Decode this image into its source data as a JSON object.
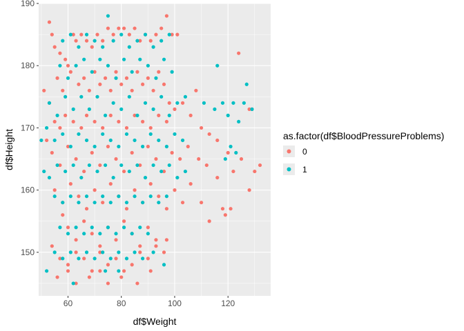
{
  "chart_data": {
    "type": "scatter",
    "title": "",
    "xlabel": "df$Weight",
    "ylabel": "df$Height",
    "xlim": [
      49,
      136
    ],
    "ylim": [
      143,
      190
    ],
    "x_ticks": [
      60,
      80,
      100,
      120
    ],
    "x_tick_labels": [
      "60",
      "80",
      "100",
      "120"
    ],
    "y_ticks": [
      150,
      160,
      170,
      180,
      190
    ],
    "y_tick_labels": [
      "150",
      "160",
      "170",
      "180",
      "190"
    ],
    "grid": true,
    "legend": {
      "placement": "right",
      "title": "as.factor(df$BloodPressureProblems)"
    },
    "series": [
      {
        "name": "0",
        "color": "#F8766D",
        "points": [
          [
            53,
            187
          ],
          [
            54,
            185
          ],
          [
            55,
            183
          ],
          [
            57,
            182
          ],
          [
            59,
            181
          ],
          [
            60,
            180
          ],
          [
            62,
            185
          ],
          [
            63,
            184
          ],
          [
            65,
            185
          ],
          [
            67,
            184
          ],
          [
            69,
            183
          ],
          [
            71,
            185
          ],
          [
            73,
            184
          ],
          [
            75,
            186
          ],
          [
            77,
            185
          ],
          [
            79,
            186
          ],
          [
            81,
            186
          ],
          [
            83,
            185
          ],
          [
            85,
            186
          ],
          [
            87,
            184
          ],
          [
            89,
            185
          ],
          [
            91,
            184
          ],
          [
            93,
            185
          ],
          [
            95,
            186
          ],
          [
            97,
            188
          ],
          [
            99,
            185
          ],
          [
            101,
            185
          ],
          [
            56,
            178
          ],
          [
            58,
            176
          ],
          [
            61,
            179
          ],
          [
            64,
            177
          ],
          [
            66,
            178
          ],
          [
            68,
            176
          ],
          [
            70,
            179
          ],
          [
            72,
            177
          ],
          [
            74,
            178
          ],
          [
            76,
            176
          ],
          [
            78,
            179
          ],
          [
            80,
            177
          ],
          [
            82,
            178
          ],
          [
            84,
            176
          ],
          [
            86,
            179
          ],
          [
            88,
            177
          ],
          [
            90,
            178
          ],
          [
            92,
            176
          ],
          [
            94,
            179
          ],
          [
            96,
            177
          ],
          [
            98,
            174
          ],
          [
            51,
            176
          ],
          [
            53,
            174
          ],
          [
            55,
            171
          ],
          [
            57,
            170
          ],
          [
            59,
            172
          ],
          [
            62,
            171
          ],
          [
            65,
            170
          ],
          [
            67,
            172
          ],
          [
            70,
            171
          ],
          [
            73,
            170
          ],
          [
            76,
            172
          ],
          [
            79,
            171
          ],
          [
            82,
            170
          ],
          [
            85,
            172
          ],
          [
            88,
            171
          ],
          [
            91,
            170
          ],
          [
            94,
            172
          ],
          [
            97,
            171
          ],
          [
            100,
            173
          ],
          [
            103,
            174
          ],
          [
            106,
            172
          ],
          [
            108,
            176
          ],
          [
            110,
            170
          ],
          [
            113,
            169
          ],
          [
            116,
            168
          ],
          [
            52,
            168
          ],
          [
            54,
            166
          ],
          [
            57,
            164
          ],
          [
            60,
            167
          ],
          [
            63,
            165
          ],
          [
            66,
            163
          ],
          [
            69,
            166
          ],
          [
            72,
            164
          ],
          [
            75,
            167
          ],
          [
            78,
            165
          ],
          [
            81,
            163
          ],
          [
            84,
            166
          ],
          [
            87,
            164
          ],
          [
            90,
            167
          ],
          [
            93,
            165
          ],
          [
            96,
            163
          ],
          [
            99,
            166
          ],
          [
            102,
            165
          ],
          [
            105,
            167
          ],
          [
            109,
            165
          ],
          [
            112,
            164
          ],
          [
            120,
            166
          ],
          [
            122,
            163
          ],
          [
            125,
            165
          ],
          [
            128,
            173
          ],
          [
            129,
            173
          ],
          [
            132,
            164
          ],
          [
            130,
            163
          ],
          [
            128,
            160
          ],
          [
            55,
            160
          ],
          [
            58,
            158
          ],
          [
            61,
            161
          ],
          [
            64,
            159
          ],
          [
            67,
            157
          ],
          [
            70,
            160
          ],
          [
            73,
            158
          ],
          [
            76,
            161
          ],
          [
            79,
            159
          ],
          [
            82,
            157
          ],
          [
            85,
            160
          ],
          [
            88,
            158
          ],
          [
            91,
            161
          ],
          [
            94,
            159
          ],
          [
            97,
            157
          ],
          [
            100,
            160
          ],
          [
            103,
            158
          ],
          [
            106,
            161
          ],
          [
            110,
            158
          ],
          [
            113,
            155
          ],
          [
            116,
            162
          ],
          [
            118,
            157
          ],
          [
            119,
            156
          ],
          [
            121,
            157
          ],
          [
            124,
            182
          ],
          [
            58,
            156
          ],
          [
            60,
            154
          ],
          [
            63,
            152
          ],
          [
            66,
            155
          ],
          [
            69,
            153
          ],
          [
            72,
            151
          ],
          [
            75,
            154
          ],
          [
            78,
            152
          ],
          [
            81,
            155
          ],
          [
            84,
            153
          ],
          [
            87,
            151
          ],
          [
            90,
            154
          ],
          [
            93,
            152
          ],
          [
            96,
            150
          ],
          [
            54,
            151
          ],
          [
            57,
            149
          ],
          [
            60,
            148
          ],
          [
            63,
            150
          ],
          [
            66,
            149
          ],
          [
            69,
            147
          ],
          [
            72,
            150
          ],
          [
            75,
            148
          ],
          [
            78,
            149
          ],
          [
            81,
            147
          ],
          [
            84,
            148
          ],
          [
            87,
            150
          ],
          [
            90,
            149
          ],
          [
            93,
            151
          ],
          [
            97,
            152
          ],
          [
            56,
            146
          ],
          [
            60,
            147
          ],
          [
            63,
            145
          ],
          [
            68,
            146
          ],
          [
            72,
            147
          ],
          [
            75,
            145
          ],
          [
            80,
            146
          ],
          [
            86,
            145
          ],
          [
            91,
            147
          ]
        ]
      },
      {
        "name": "1",
        "color": "#00BFC4",
        "points": [
          [
            58,
            184
          ],
          [
            61,
            185
          ],
          [
            64,
            183
          ],
          [
            67,
            185
          ],
          [
            70,
            184
          ],
          [
            73,
            183
          ],
          [
            75,
            188
          ],
          [
            77,
            184
          ],
          [
            80,
            185
          ],
          [
            83,
            183
          ],
          [
            86,
            184
          ],
          [
            89,
            185
          ],
          [
            92,
            183
          ],
          [
            95,
            184
          ],
          [
            98,
            185
          ],
          [
            57,
            180
          ],
          [
            60,
            178
          ],
          [
            63,
            180
          ],
          [
            66,
            181
          ],
          [
            69,
            179
          ],
          [
            72,
            181
          ],
          [
            75,
            180
          ],
          [
            78,
            178
          ],
          [
            81,
            181
          ],
          [
            84,
            179
          ],
          [
            87,
            181
          ],
          [
            90,
            180
          ],
          [
            93,
            178
          ],
          [
            96,
            181
          ],
          [
            99,
            179
          ],
          [
            116,
            180
          ],
          [
            127,
            177
          ],
          [
            126,
            174
          ],
          [
            124,
            171
          ],
          [
            122,
            174
          ],
          [
            120,
            172
          ],
          [
            118,
            174
          ],
          [
            115,
            173
          ],
          [
            111,
            174
          ],
          [
            129,
            173
          ],
          [
            53,
            174
          ],
          [
            56,
            172
          ],
          [
            59,
            175
          ],
          [
            62,
            173
          ],
          [
            65,
            175
          ],
          [
            68,
            173
          ],
          [
            71,
            175
          ],
          [
            74,
            172
          ],
          [
            77,
            174
          ],
          [
            80,
            173
          ],
          [
            83,
            175
          ],
          [
            86,
            172
          ],
          [
            89,
            174
          ],
          [
            92,
            173
          ],
          [
            95,
            175
          ],
          [
            98,
            172
          ],
          [
            101,
            174
          ],
          [
            104,
            175
          ],
          [
            50,
            168
          ],
          [
            52,
            170
          ],
          [
            55,
            168
          ],
          [
            58,
            169
          ],
          [
            61,
            167
          ],
          [
            64,
            169
          ],
          [
            67,
            168
          ],
          [
            70,
            167
          ],
          [
            73,
            169
          ],
          [
            76,
            168
          ],
          [
            79,
            167
          ],
          [
            82,
            169
          ],
          [
            85,
            168
          ],
          [
            88,
            167
          ],
          [
            91,
            169
          ],
          [
            94,
            168
          ],
          [
            97,
            167
          ],
          [
            100,
            169
          ],
          [
            103,
            168
          ],
          [
            51,
            163
          ],
          [
            53,
            162
          ],
          [
            56,
            164
          ],
          [
            59,
            163
          ],
          [
            62,
            164
          ],
          [
            65,
            162
          ],
          [
            68,
            164
          ],
          [
            71,
            163
          ],
          [
            74,
            164
          ],
          [
            77,
            162
          ],
          [
            80,
            164
          ],
          [
            83,
            163
          ],
          [
            86,
            164
          ],
          [
            89,
            162
          ],
          [
            92,
            164
          ],
          [
            95,
            163
          ],
          [
            98,
            164
          ],
          [
            101,
            162
          ],
          [
            104,
            163
          ],
          [
            121,
            167
          ],
          [
            119,
            165
          ],
          [
            123,
            166
          ],
          [
            55,
            159
          ],
          [
            58,
            158
          ],
          [
            61,
            159
          ],
          [
            64,
            158
          ],
          [
            67,
            159
          ],
          [
            70,
            158
          ],
          [
            73,
            159
          ],
          [
            76,
            158
          ],
          [
            79,
            159
          ],
          [
            82,
            158
          ],
          [
            85,
            159
          ],
          [
            88,
            158
          ],
          [
            91,
            159
          ],
          [
            94,
            158
          ],
          [
            97,
            159
          ],
          [
            57,
            154
          ],
          [
            60,
            153
          ],
          [
            63,
            154
          ],
          [
            66,
            153
          ],
          [
            69,
            154
          ],
          [
            72,
            153
          ],
          [
            75,
            154
          ],
          [
            78,
            153
          ],
          [
            81,
            154
          ],
          [
            84,
            153
          ],
          [
            87,
            154
          ],
          [
            90,
            153
          ],
          [
            55,
            150
          ],
          [
            58,
            149
          ],
          [
            61,
            150
          ],
          [
            64,
            149
          ],
          [
            67,
            150
          ],
          [
            70,
            149
          ],
          [
            73,
            150
          ],
          [
            76,
            149
          ],
          [
            79,
            150
          ],
          [
            82,
            149
          ],
          [
            85,
            150
          ],
          [
            88,
            149
          ],
          [
            92,
            150
          ],
          [
            96,
            148
          ],
          [
            52,
            147
          ],
          [
            62,
            145
          ],
          [
            74,
            147
          ],
          [
            79,
            147
          ]
        ]
      }
    ]
  }
}
